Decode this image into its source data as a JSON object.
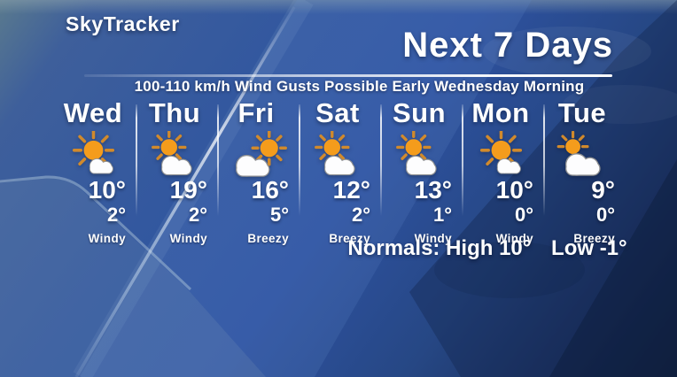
{
  "branding": {
    "logo_text": "SkyTracker"
  },
  "header": {
    "title": "Next 7 Days",
    "alert": "100-110 km/h Wind Gusts Possible Early Wednesday Morning"
  },
  "forecast": {
    "days": [
      {
        "label": "Wed",
        "icon": "sun-small-cloud",
        "high": "10°",
        "low": "2°",
        "condition": "Windy"
      },
      {
        "label": "Thu",
        "icon": "sun-behind-cloud",
        "high": "19°",
        "low": "2°",
        "condition": "Windy"
      },
      {
        "label": "Fri",
        "icon": "cloud-with-sun-right",
        "high": "16°",
        "low": "5°",
        "condition": "Breezy"
      },
      {
        "label": "Sat",
        "icon": "sun-behind-cloud",
        "high": "12°",
        "low": "2°",
        "condition": "Breezy"
      },
      {
        "label": "Sun",
        "icon": "sun-behind-cloud",
        "high": "13°",
        "low": "1°",
        "condition": "Windy"
      },
      {
        "label": "Mon",
        "icon": "sun-small-cloud",
        "high": "10°",
        "low": "0°",
        "condition": "Windy"
      },
      {
        "label": "Tue",
        "icon": "cloud-sun-peek",
        "high": "9°",
        "low": "0°",
        "condition": "Breezy"
      }
    ]
  },
  "normals": {
    "label": "Normals:",
    "high": "High 10°",
    "low": "Low -1°"
  },
  "colors": {
    "text": "#ffffff",
    "sun": "#f49c1c",
    "sun_rays": "#d18a2c",
    "cloud_fill": "#fdfdfe",
    "cloud_outline": "#8f9091",
    "divider": "#ffffff",
    "sky_mid_blue": "#2e52a0",
    "sky_dark_navy": "#142443"
  }
}
